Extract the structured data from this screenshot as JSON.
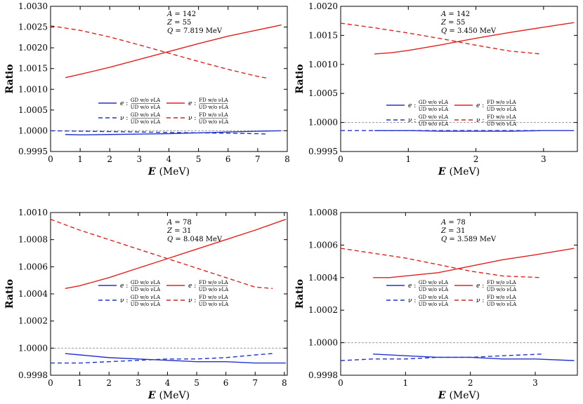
{
  "chart_data": [
    {
      "type": "line",
      "xlabel": "E",
      "xunit": "(MeV)",
      "ylabel": "Ratio",
      "xlim": [
        0,
        8
      ],
      "ylim": [
        0.9995,
        1.003
      ],
      "xticks": [
        "0",
        "1",
        "2",
        "3",
        "4",
        "5",
        "6",
        "7",
        "8"
      ],
      "yticks": [
        "0.9995",
        "1.0000",
        "1.0005",
        "1.0010",
        "1.0015",
        "1.0020",
        "1.0025",
        "1.0030"
      ],
      "annotation": [
        "A = 142",
        "Z = 55",
        "Q = 7.819 MeV"
      ],
      "legend": [
        {
          "particle": "e",
          "num": "GD w/o νLA",
          "den": "UD w/o νLA"
        },
        {
          "particle": "e",
          "num": "FD w/o νLA",
          "den": "UD w/o νLA"
        },
        {
          "particle": "ν",
          "num": "GD w/o νLA",
          "den": "UD w/o νLA"
        },
        {
          "particle": "ν",
          "num": "FD w/o νLA",
          "den": "UD w/o νLA"
        }
      ],
      "reference_line": 1.0,
      "series": [
        {
          "color": "#2233cc",
          "dash": false,
          "x": [
            0.5,
            1,
            2,
            3,
            4,
            5,
            6,
            7,
            7.8
          ],
          "y": [
            0.99991,
            0.9999,
            0.99991,
            0.99992,
            0.99993,
            0.99995,
            0.99997,
            0.99999,
            1.0
          ]
        },
        {
          "color": "#e0201c",
          "dash": false,
          "x": [
            0.5,
            1,
            2,
            3,
            4,
            5,
            6,
            7,
            7.8
          ],
          "y": [
            1.00128,
            1.00136,
            1.00153,
            1.00172,
            1.00191,
            1.0021,
            1.00228,
            1.00243,
            1.00255
          ]
        },
        {
          "color": "#2233cc",
          "dash": true,
          "x": [
            0,
            1,
            2,
            3,
            4,
            5,
            6,
            7,
            7.3
          ],
          "y": [
            1.0,
            0.99999,
            0.99998,
            0.99997,
            0.99996,
            0.99995,
            0.99994,
            0.99993,
            0.99992
          ]
        },
        {
          "color": "#e0201c",
          "dash": true,
          "x": [
            0,
            1,
            2,
            3,
            4,
            5,
            6,
            7,
            7.3
          ],
          "y": [
            1.00253,
            1.00242,
            1.00226,
            1.00207,
            1.00187,
            1.00167,
            1.00148,
            1.00131,
            1.00127
          ]
        }
      ]
    },
    {
      "type": "line",
      "xlabel": "E",
      "xunit": "(MeV)",
      "ylabel": "Ratio",
      "xlim": [
        0,
        3.5
      ],
      "ylim": [
        0.9995,
        1.002
      ],
      "xticks": [
        "0",
        "1",
        "2",
        "3"
      ],
      "yticks": [
        "0.9995",
        "1.0000",
        "1.0005",
        "1.0010",
        "1.0015",
        "1.0020"
      ],
      "annotation": [
        "A = 142",
        "Z = 55",
        "Q = 3.450 MeV"
      ],
      "legend": [
        {
          "particle": "e",
          "num": "GD w/o νLA",
          "den": "UD w/o νLA"
        },
        {
          "particle": "e",
          "num": "FD w/o νLA",
          "den": "UD w/o νLA"
        },
        {
          "particle": "ν",
          "num": "GD w/o νLA",
          "den": "UD w/o νLA"
        },
        {
          "particle": "ν",
          "num": "FD w/o νLA",
          "den": "UD w/o νLA"
        }
      ],
      "reference_line": 1.0,
      "series": [
        {
          "color": "#2233cc",
          "dash": false,
          "x": [
            0.5,
            1,
            1.5,
            2,
            2.5,
            3,
            3.45
          ],
          "y": [
            0.99986,
            0.99986,
            0.99985,
            0.99985,
            0.99985,
            0.99986,
            0.99986
          ]
        },
        {
          "color": "#e0201c",
          "dash": false,
          "x": [
            0.5,
            0.75,
            1,
            1.5,
            2,
            2.5,
            3,
            3.45
          ],
          "y": [
            1.00118,
            1.0012,
            1.00124,
            1.00134,
            1.00145,
            1.00155,
            1.00164,
            1.00172
          ]
        },
        {
          "color": "#2233cc",
          "dash": true,
          "x": [
            0,
            0.5,
            1,
            1.5,
            2,
            2.5,
            2.95
          ],
          "y": [
            0.99986,
            0.99986,
            0.99986,
            0.99986,
            0.99986,
            0.99986,
            0.99986
          ]
        },
        {
          "color": "#e0201c",
          "dash": true,
          "x": [
            0,
            0.5,
            1,
            1.5,
            2,
            2.5,
            2.95
          ],
          "y": [
            1.00171,
            1.00163,
            1.00154,
            1.00144,
            1.00133,
            1.00123,
            1.00118
          ]
        }
      ]
    },
    {
      "type": "line",
      "xlabel": "E",
      "xunit": "(MeV)",
      "ylabel": "Ratio",
      "xlim": [
        0,
        8.1
      ],
      "ylim": [
        0.9998,
        1.001
      ],
      "xticks": [
        "0",
        "1",
        "2",
        "3",
        "4",
        "5",
        "6",
        "7",
        "8"
      ],
      "yticks": [
        "0.9998",
        "1.0000",
        "1.0002",
        "1.0004",
        "1.0006",
        "1.0008",
        "1.0010"
      ],
      "annotation": [
        "A = 78",
        "Z = 31",
        "Q = 8.048 MeV"
      ],
      "legend": [
        {
          "particle": "e",
          "num": "GD w/o νLA",
          "den": "UD w/o νLA"
        },
        {
          "particle": "e",
          "num": "FD w/o νLA",
          "den": "UD w/o νLA"
        },
        {
          "particle": "ν",
          "num": "GD w/o νLA",
          "den": "UD w/o νLA"
        },
        {
          "particle": "ν",
          "num": "FD w/o νLA",
          "den": "UD w/o νLA"
        }
      ],
      "reference_line": 1.0,
      "series": [
        {
          "color": "#2233cc",
          "dash": false,
          "x": [
            0.5,
            1,
            2,
            3,
            4,
            5,
            6,
            7,
            8.05
          ],
          "y": [
            0.99996,
            0.99995,
            0.99993,
            0.99992,
            0.99991,
            0.9999,
            0.9999,
            0.99989,
            0.99989
          ]
        },
        {
          "color": "#e0201c",
          "dash": false,
          "x": [
            0.5,
            1,
            2,
            3,
            4,
            5,
            6,
            7,
            8.05
          ],
          "y": [
            1.00044,
            1.00046,
            1.00052,
            1.00059,
            1.00066,
            1.00073,
            1.0008,
            1.00087,
            1.00095
          ]
        },
        {
          "color": "#2233cc",
          "dash": true,
          "x": [
            0,
            1,
            2,
            3,
            4,
            5,
            6,
            7,
            7.6
          ],
          "y": [
            0.99989,
            0.99989,
            0.9999,
            0.99991,
            0.99992,
            0.99992,
            0.99993,
            0.99995,
            0.99996
          ]
        },
        {
          "color": "#e0201c",
          "dash": true,
          "x": [
            0,
            1,
            2,
            3,
            4,
            5,
            6,
            7,
            7.6
          ],
          "y": [
            1.00095,
            1.00087,
            1.0008,
            1.00073,
            1.00066,
            1.00059,
            1.00052,
            1.00045,
            1.00044
          ]
        }
      ]
    },
    {
      "type": "line",
      "xlabel": "E",
      "xunit": "(MeV)",
      "ylabel": "Ratio",
      "xlim": [
        0,
        3.65
      ],
      "ylim": [
        0.9998,
        1.0008
      ],
      "xticks": [
        "0",
        "1",
        "2",
        "3"
      ],
      "yticks": [
        "0.9998",
        "1.0000",
        "1.0002",
        "1.0004",
        "1.0006",
        "1.0008"
      ],
      "annotation": [
        "A = 78",
        "Z = 31",
        "Q = 3.589 MeV"
      ],
      "legend": [
        {
          "particle": "e",
          "num": "GD w/o νLA",
          "den": "UD w/o νLA"
        },
        {
          "particle": "e",
          "num": "FD w/o νLA",
          "den": "UD w/o νLA"
        },
        {
          "particle": "ν",
          "num": "GD w/o νLA",
          "den": "UD w/o νLA"
        },
        {
          "particle": "ν",
          "num": "FD w/o νLA",
          "den": "UD w/o νLA"
        }
      ],
      "reference_line": 1.0,
      "series": [
        {
          "color": "#2233cc",
          "dash": false,
          "x": [
            0.5,
            1,
            1.5,
            2,
            2.5,
            3,
            3.6
          ],
          "y": [
            0.99993,
            0.99992,
            0.99991,
            0.99991,
            0.9999,
            0.9999,
            0.99989
          ]
        },
        {
          "color": "#e0201c",
          "dash": false,
          "x": [
            0.5,
            0.75,
            1,
            1.5,
            2,
            2.5,
            3,
            3.6
          ],
          "y": [
            1.0004,
            1.0004,
            1.00041,
            1.00043,
            1.00047,
            1.00051,
            1.00054,
            1.00058
          ]
        },
        {
          "color": "#2233cc",
          "dash": true,
          "x": [
            0,
            0.5,
            1,
            1.5,
            2,
            2.5,
            3.1
          ],
          "y": [
            0.99989,
            0.9999,
            0.9999,
            0.99991,
            0.99991,
            0.99992,
            0.99993
          ]
        },
        {
          "color": "#e0201c",
          "dash": true,
          "x": [
            0,
            0.5,
            1,
            1.5,
            2,
            2.5,
            3.1
          ],
          "y": [
            1.00058,
            1.00055,
            1.00052,
            1.00048,
            1.00044,
            1.00041,
            1.0004
          ]
        }
      ]
    }
  ]
}
